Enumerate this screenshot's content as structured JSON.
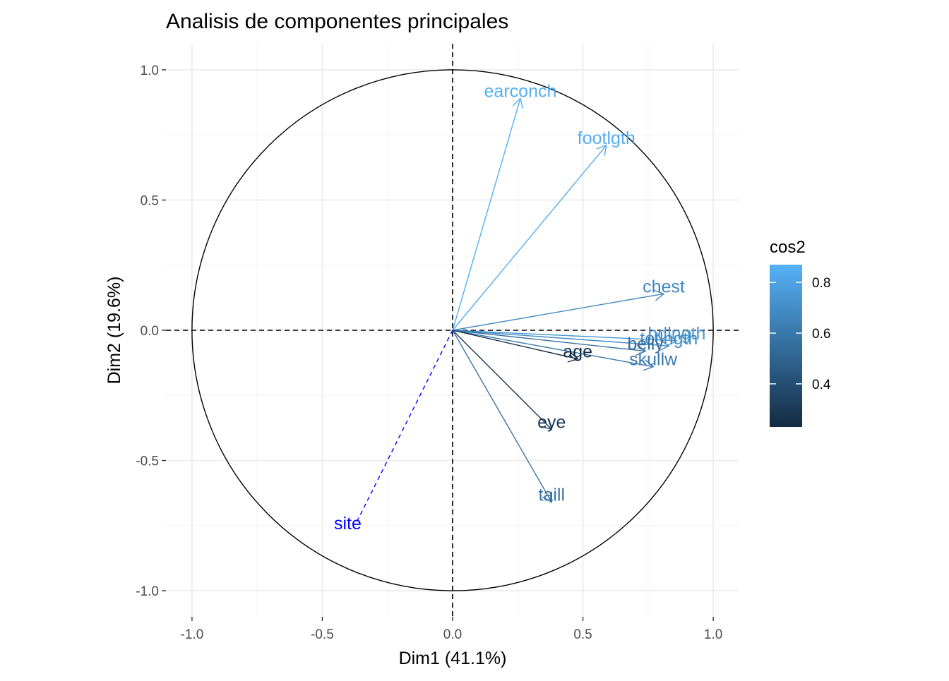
{
  "chart_data": {
    "type": "scatter",
    "subtype": "pca-variable-correlation-circle",
    "title": "Analisis de componentes principales",
    "xlabel": "Dim1 (41.1%)",
    "ylabel": "Dim2 (19.6%)",
    "xlim": [
      -1.1,
      1.1
    ],
    "ylim": [
      -1.1,
      1.1
    ],
    "xticks": [
      -1.0,
      -0.5,
      0.0,
      0.5,
      1.0
    ],
    "yticks": [
      -1.0,
      -0.5,
      0.0,
      0.5,
      1.0
    ],
    "xtick_labels": [
      "-1.0",
      "-0.5",
      "0.0",
      "0.5",
      "1.0"
    ],
    "ytick_labels": [
      "-1.0",
      "-0.5",
      "0.0",
      "0.5",
      "1.0"
    ],
    "grid": true,
    "unit_circle": true,
    "zero_lines": "dashed",
    "variables": [
      {
        "name": "earconch",
        "x": 0.26,
        "y": 0.89,
        "cos2": 0.86
      },
      {
        "name": "footlgth",
        "x": 0.59,
        "y": 0.71,
        "cos2": 0.85
      },
      {
        "name": "chest",
        "x": 0.81,
        "y": 0.14,
        "cos2": 0.68
      },
      {
        "name": "hdlngth",
        "x": 0.86,
        "y": -0.04,
        "cos2": 0.74
      },
      {
        "name": "totlngth",
        "x": 0.83,
        "y": -0.06,
        "cos2": 0.69
      },
      {
        "name": "belly",
        "x": 0.74,
        "y": -0.08,
        "cos2": 0.56
      },
      {
        "name": "skullw",
        "x": 0.77,
        "y": -0.14,
        "cos2": 0.61
      },
      {
        "name": "age",
        "x": 0.48,
        "y": -0.11,
        "cos2": 0.24
      },
      {
        "name": "eye",
        "x": 0.38,
        "y": -0.38,
        "cos2": 0.29
      },
      {
        "name": "taill",
        "x": 0.38,
        "y": -0.66,
        "cos2": 0.58
      }
    ],
    "supplementary": [
      {
        "name": "site",
        "x": -0.37,
        "y": -0.74
      }
    ],
    "legend": {
      "title": "cos2",
      "position": "right",
      "ticks": [
        0.4,
        0.6,
        0.8
      ],
      "tick_labels": [
        "0.4",
        "0.6",
        "0.8"
      ],
      "min": 0.23,
      "max": 0.87,
      "color_low": "#132B43",
      "color_high": "#56B1F7"
    },
    "supplementary_color": "#0000FF"
  }
}
